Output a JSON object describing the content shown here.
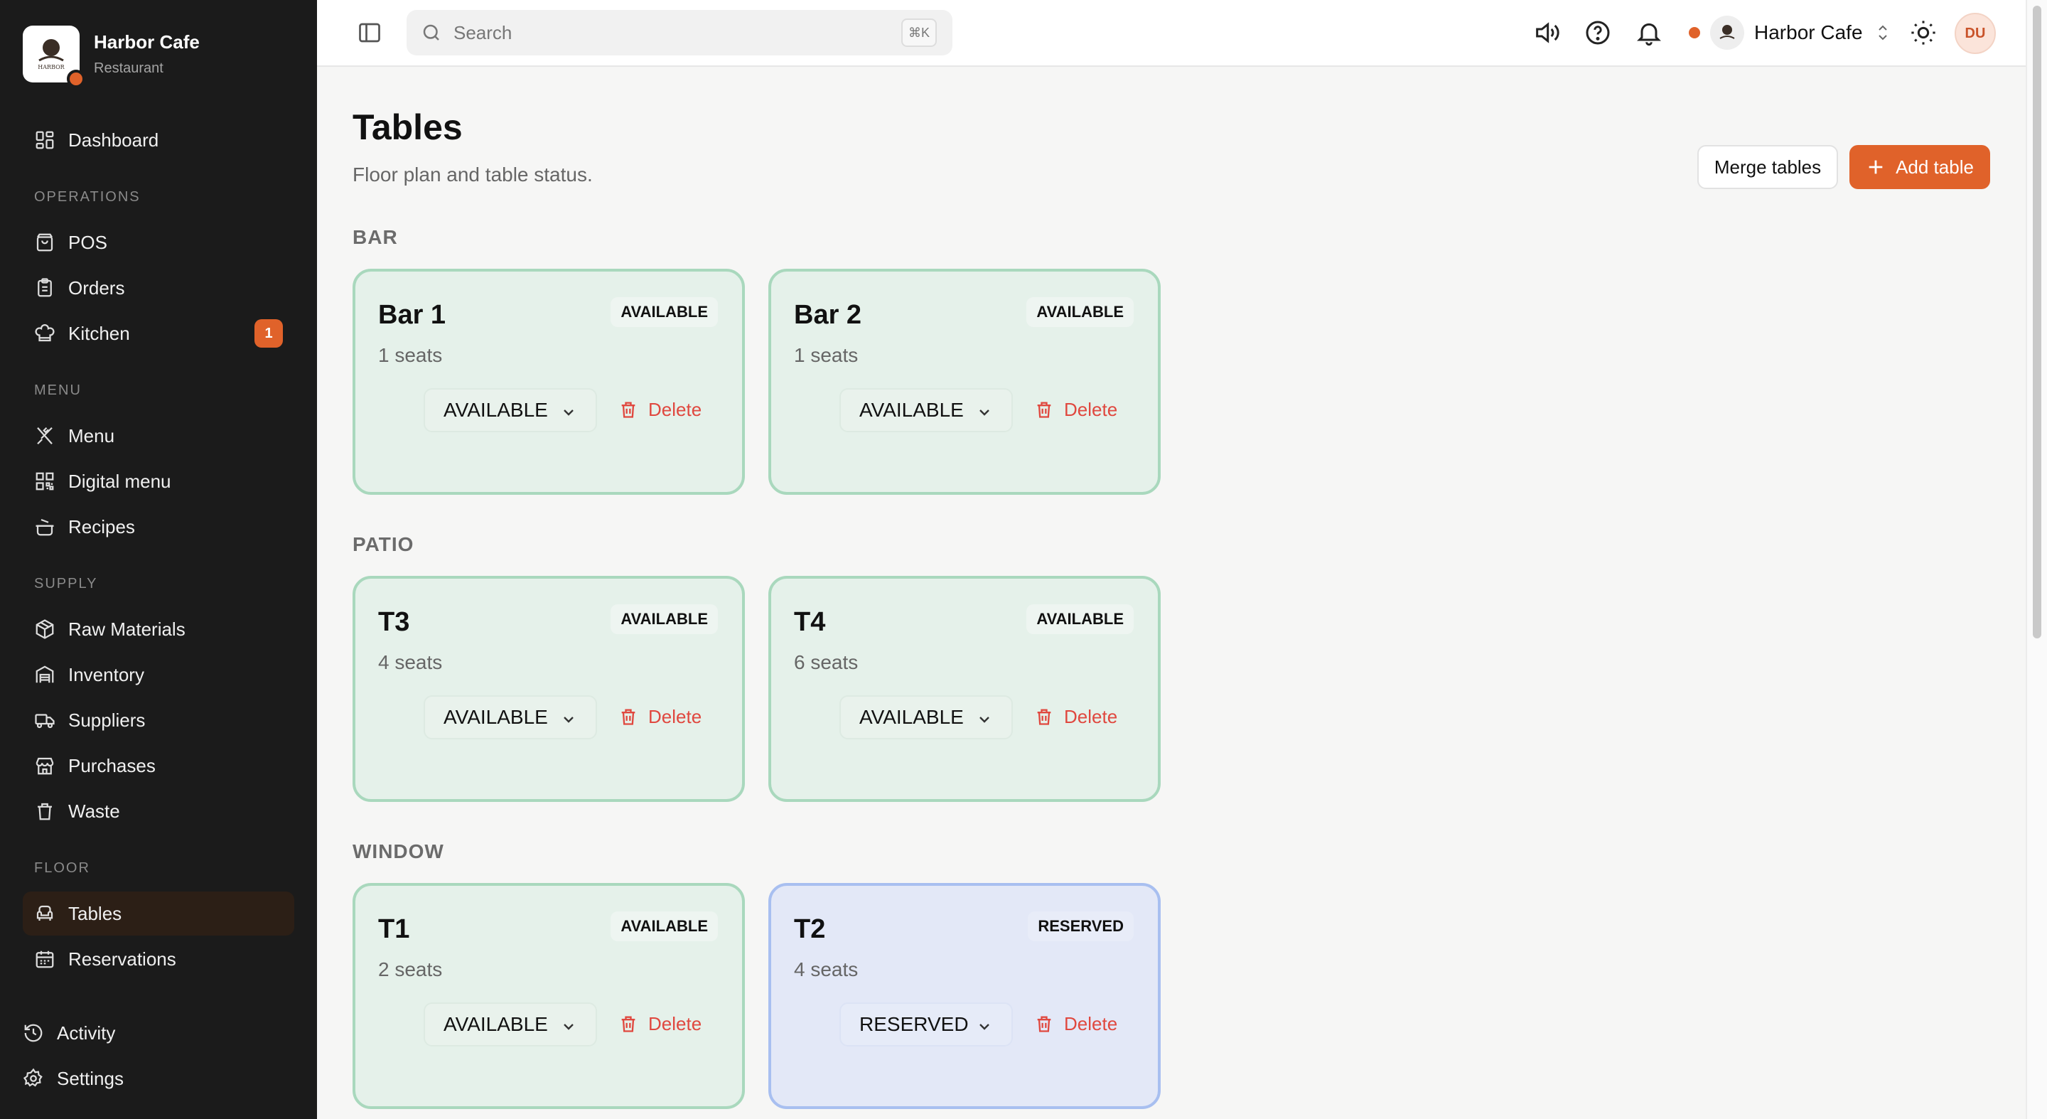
{
  "brand": {
    "name": "Harbor Cafe",
    "subtitle": "Restaurant",
    "logo_text": "HARBOR"
  },
  "sidebar": {
    "dashboard": "Dashboard",
    "sections": {
      "operations": "OPERATIONS",
      "menu": "MENU",
      "supply": "SUPPLY",
      "floor": "FLOOR"
    },
    "items": {
      "pos": "POS",
      "orders": "Orders",
      "kitchen": "Kitchen",
      "kitchen_badge": "1",
      "menu": "Menu",
      "digital_menu": "Digital menu",
      "recipes": "Recipes",
      "raw_materials": "Raw Materials",
      "inventory": "Inventory",
      "suppliers": "Suppliers",
      "purchases": "Purchases",
      "waste": "Waste",
      "tables": "Tables",
      "reservations": "Reservations"
    },
    "bottom": {
      "activity": "Activity",
      "settings": "Settings"
    },
    "active_item": "tables"
  },
  "topbar": {
    "search_placeholder": "Search",
    "search_shortcut": "⌘K",
    "cafe_switcher": "Harbor Cafe",
    "avatar_initials": "DU"
  },
  "page": {
    "title": "Tables",
    "subtitle": "Floor plan and table status.",
    "merge_label": "Merge tables",
    "add_label": "Add table"
  },
  "groups": [
    {
      "label": "BAR",
      "tables": [
        {
          "name": "Bar 1",
          "seats": "1 seats",
          "badge": "AVAILABLE",
          "status": "AVAILABLE",
          "delete": "Delete"
        },
        {
          "name": "Bar 2",
          "seats": "1 seats",
          "badge": "AVAILABLE",
          "status": "AVAILABLE",
          "delete": "Delete"
        }
      ]
    },
    {
      "label": "PATIO",
      "tables": [
        {
          "name": "T3",
          "seats": "4 seats",
          "badge": "AVAILABLE",
          "status": "AVAILABLE",
          "delete": "Delete"
        },
        {
          "name": "T4",
          "seats": "6 seats",
          "badge": "AVAILABLE",
          "status": "AVAILABLE",
          "delete": "Delete"
        }
      ]
    },
    {
      "label": "WINDOW",
      "tables": [
        {
          "name": "T1",
          "seats": "2 seats",
          "badge": "AVAILABLE",
          "status": "AVAILABLE",
          "delete": "Delete"
        },
        {
          "name": "T2",
          "seats": "4 seats",
          "badge": "RESERVED",
          "status": "RESERVED",
          "delete": "Delete"
        }
      ]
    }
  ],
  "colors": {
    "accent": "#e0622a",
    "sidebar_bg": "#1b1b1b",
    "available_bg": "#e5f1ea",
    "available_border": "#a9d8bd",
    "reserved_bg": "#e3e8f7",
    "reserved_border": "#a8bff0",
    "danger": "#e0483f"
  }
}
